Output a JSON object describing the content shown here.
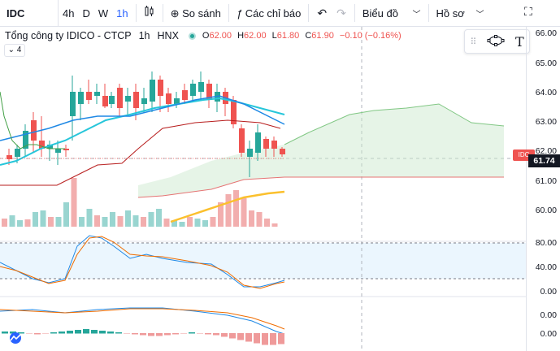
{
  "toolbar": {
    "symbol": "IDC",
    "intervals": [
      "4h",
      "D",
      "W",
      "1h"
    ],
    "active_interval": "1h",
    "compare_label": "So sánh",
    "indicators_label": "Các chỉ báo",
    "chart_type_label": "Biểu đồ",
    "profile_label": "Hồ sơ"
  },
  "legend": {
    "name": "Tổng công ty IDICO - CTCP",
    "interval": "1h",
    "exchange": "HNX",
    "open_label": "O",
    "open": "62.00",
    "high_label": "H",
    "high": "62.00",
    "low_label": "L",
    "low": "61.80",
    "close_label": "C",
    "close": "61.90",
    "change": "−0.10 (−0.16%)",
    "collapse_count": "4"
  },
  "price_axis": {
    "ticks": [
      "66.00",
      "65.00",
      "64.00",
      "63.00",
      "62.00",
      "61.00",
      "60.00"
    ],
    "last_price": "61.74",
    "symbol_tag": "IDC"
  },
  "stoch_axis": {
    "ticks": [
      "80.00",
      "40.00",
      "0.00"
    ]
  },
  "macd_axis": {
    "ticks": [
      "0.00",
      "0.00"
    ]
  },
  "colors": {
    "up": "#26a69a",
    "down": "#ef5350",
    "accent": "#2962ff"
  },
  "icons": {
    "compare": "plus-circle-icon",
    "indicators": "function-icon",
    "undo": "undo-icon",
    "redo": "redo-icon",
    "fullscreen": "fullscreen-icon",
    "indicator_template": "template-icon"
  }
}
